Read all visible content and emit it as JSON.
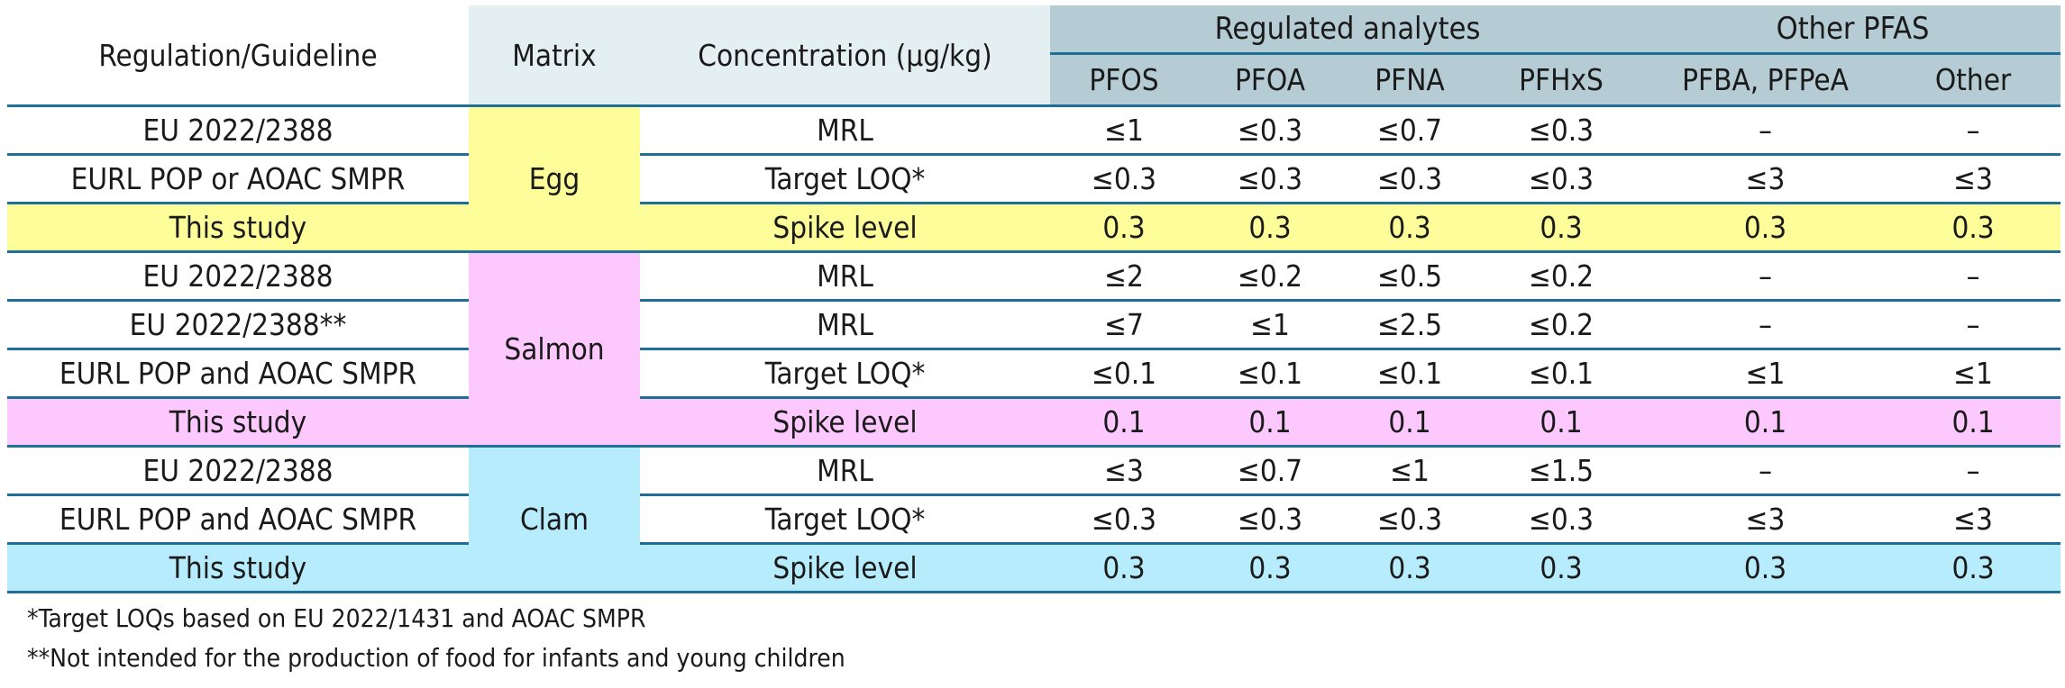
{
  "header": {
    "regulation": "Regulation/Guideline",
    "matrix": "Matrix",
    "concentration": "Concentration (μg/kg)",
    "group_regulated": "Regulated analytes",
    "group_other": "Other PFAS",
    "analytes": [
      "PFOS",
      "PFOA",
      "PFNA",
      "PFHxS",
      "PFBA, PFPeA",
      "Other"
    ]
  },
  "groups": [
    {
      "matrix": "Egg",
      "color": "#fdfd9a",
      "rows": [
        {
          "regulation": "EU 2022/2388",
          "concentration": "MRL",
          "values": [
            "≤1",
            "≤0.3",
            "≤0.7",
            "≤0.3",
            "–",
            "–"
          ]
        },
        {
          "regulation": "EURL POP or AOAC SMPR",
          "concentration": "Target LOQ*",
          "values": [
            "≤0.3",
            "≤0.3",
            "≤0.3",
            "≤0.3",
            "≤3",
            "≤3"
          ]
        },
        {
          "regulation": "This study",
          "concentration": "Spike level",
          "values": [
            "0.3",
            "0.3",
            "0.3",
            "0.3",
            "0.3",
            "0.3"
          ]
        }
      ]
    },
    {
      "matrix": "Salmon",
      "color": "#fdc8fd",
      "rows": [
        {
          "regulation": "EU 2022/2388",
          "concentration": "MRL",
          "values": [
            "≤2",
            "≤0.2",
            "≤0.5",
            "≤0.2",
            "–",
            "–"
          ]
        },
        {
          "regulation": "EU 2022/2388**",
          "concentration": "MRL",
          "values": [
            "≤7",
            "≤1",
            "≤2.5",
            "≤0.2",
            "–",
            "–"
          ]
        },
        {
          "regulation": "EURL POP and AOAC SMPR",
          "concentration": "Target LOQ*",
          "values": [
            "≤0.1",
            "≤0.1",
            "≤0.1",
            "≤0.1",
            "≤1",
            "≤1"
          ]
        },
        {
          "regulation": "This study",
          "concentration": "Spike level",
          "values": [
            "0.1",
            "0.1",
            "0.1",
            "0.1",
            "0.1",
            "0.1"
          ]
        }
      ]
    },
    {
      "matrix": "Clam",
      "color": "#b6ecfc",
      "rows": [
        {
          "regulation": "EU 2022/2388",
          "concentration": "MRL",
          "values": [
            "≤3",
            "≤0.7",
            "≤1",
            "≤1.5",
            "–",
            "–"
          ]
        },
        {
          "regulation": "EURL POP and AOAC SMPR",
          "concentration": "Target LOQ*",
          "values": [
            "≤0.3",
            "≤0.3",
            "≤0.3",
            "≤0.3",
            "≤3",
            "≤3"
          ]
        },
        {
          "regulation": "This study",
          "concentration": "Spike level",
          "values": [
            "0.3",
            "0.3",
            "0.3",
            "0.3",
            "0.3",
            "0.3"
          ]
        }
      ]
    }
  ],
  "footnotes": [
    "*Target LOQs based on EU 2022/1431 and AOAC SMPR",
    "**Not intended for the production of food for infants and young children"
  ]
}
